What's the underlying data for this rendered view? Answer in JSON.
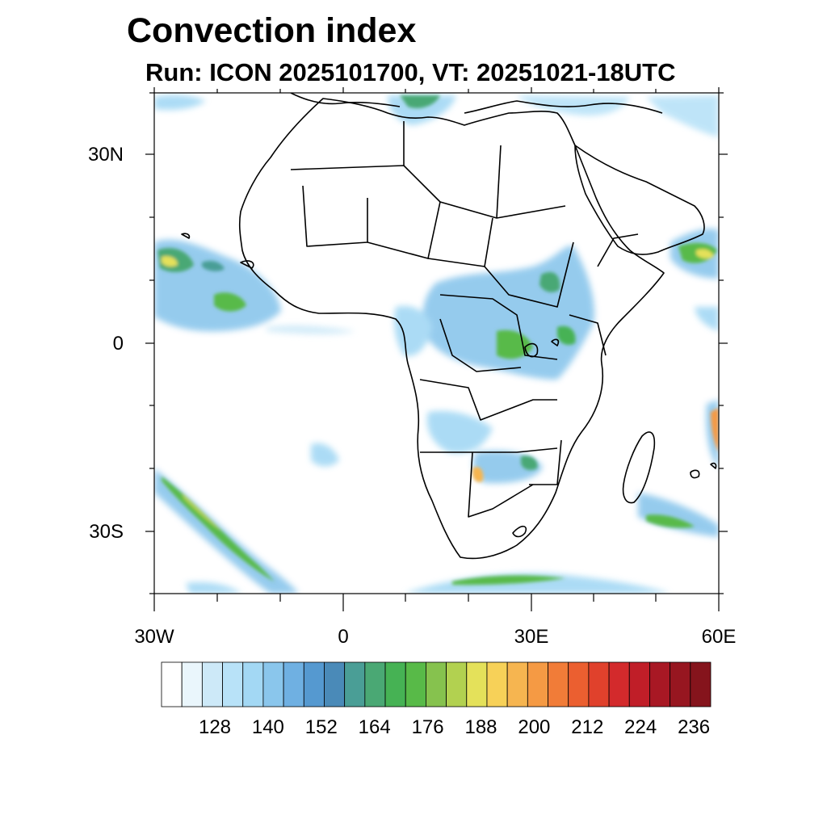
{
  "title": "Convection index",
  "subtitle": "Run: ICON 2025101700,  VT: 20251021-18UTC",
  "map": {
    "region": "Africa",
    "lon_range": [
      -30,
      60
    ],
    "lat_range": [
      -40,
      40
    ],
    "y_axis_labels": [
      {
        "lat": 30,
        "text": "30N"
      },
      {
        "lat": 0,
        "text": "0"
      },
      {
        "lat": -30,
        "text": "30S"
      }
    ],
    "x_axis_labels": [
      {
        "lon": -30,
        "text": "30W"
      },
      {
        "lon": 0,
        "text": "0"
      },
      {
        "lon": 30,
        "text": "30E"
      },
      {
        "lon": 60,
        "text": "60E"
      }
    ]
  },
  "colorbar": {
    "labels": [
      "128",
      "140",
      "152",
      "164",
      "176",
      "188",
      "200",
      "212",
      "224",
      "236"
    ],
    "colors": [
      "#ffffff",
      "#eaf6fc",
      "#cde9f8",
      "#b8e2f8",
      "#a3d8f4",
      "#8ac6ec",
      "#6fb0e2",
      "#5599d0",
      "#4a8ab8",
      "#4a9e96",
      "#4aa874",
      "#46b254",
      "#58ba48",
      "#86c24e",
      "#b2d150",
      "#e4e15a",
      "#f7d158",
      "#f6b550",
      "#f59a44",
      "#f17c38",
      "#eb5f30",
      "#e0412c",
      "#d32a2c",
      "#c01e28",
      "#a81824",
      "#971620",
      "#85141c"
    ]
  }
}
